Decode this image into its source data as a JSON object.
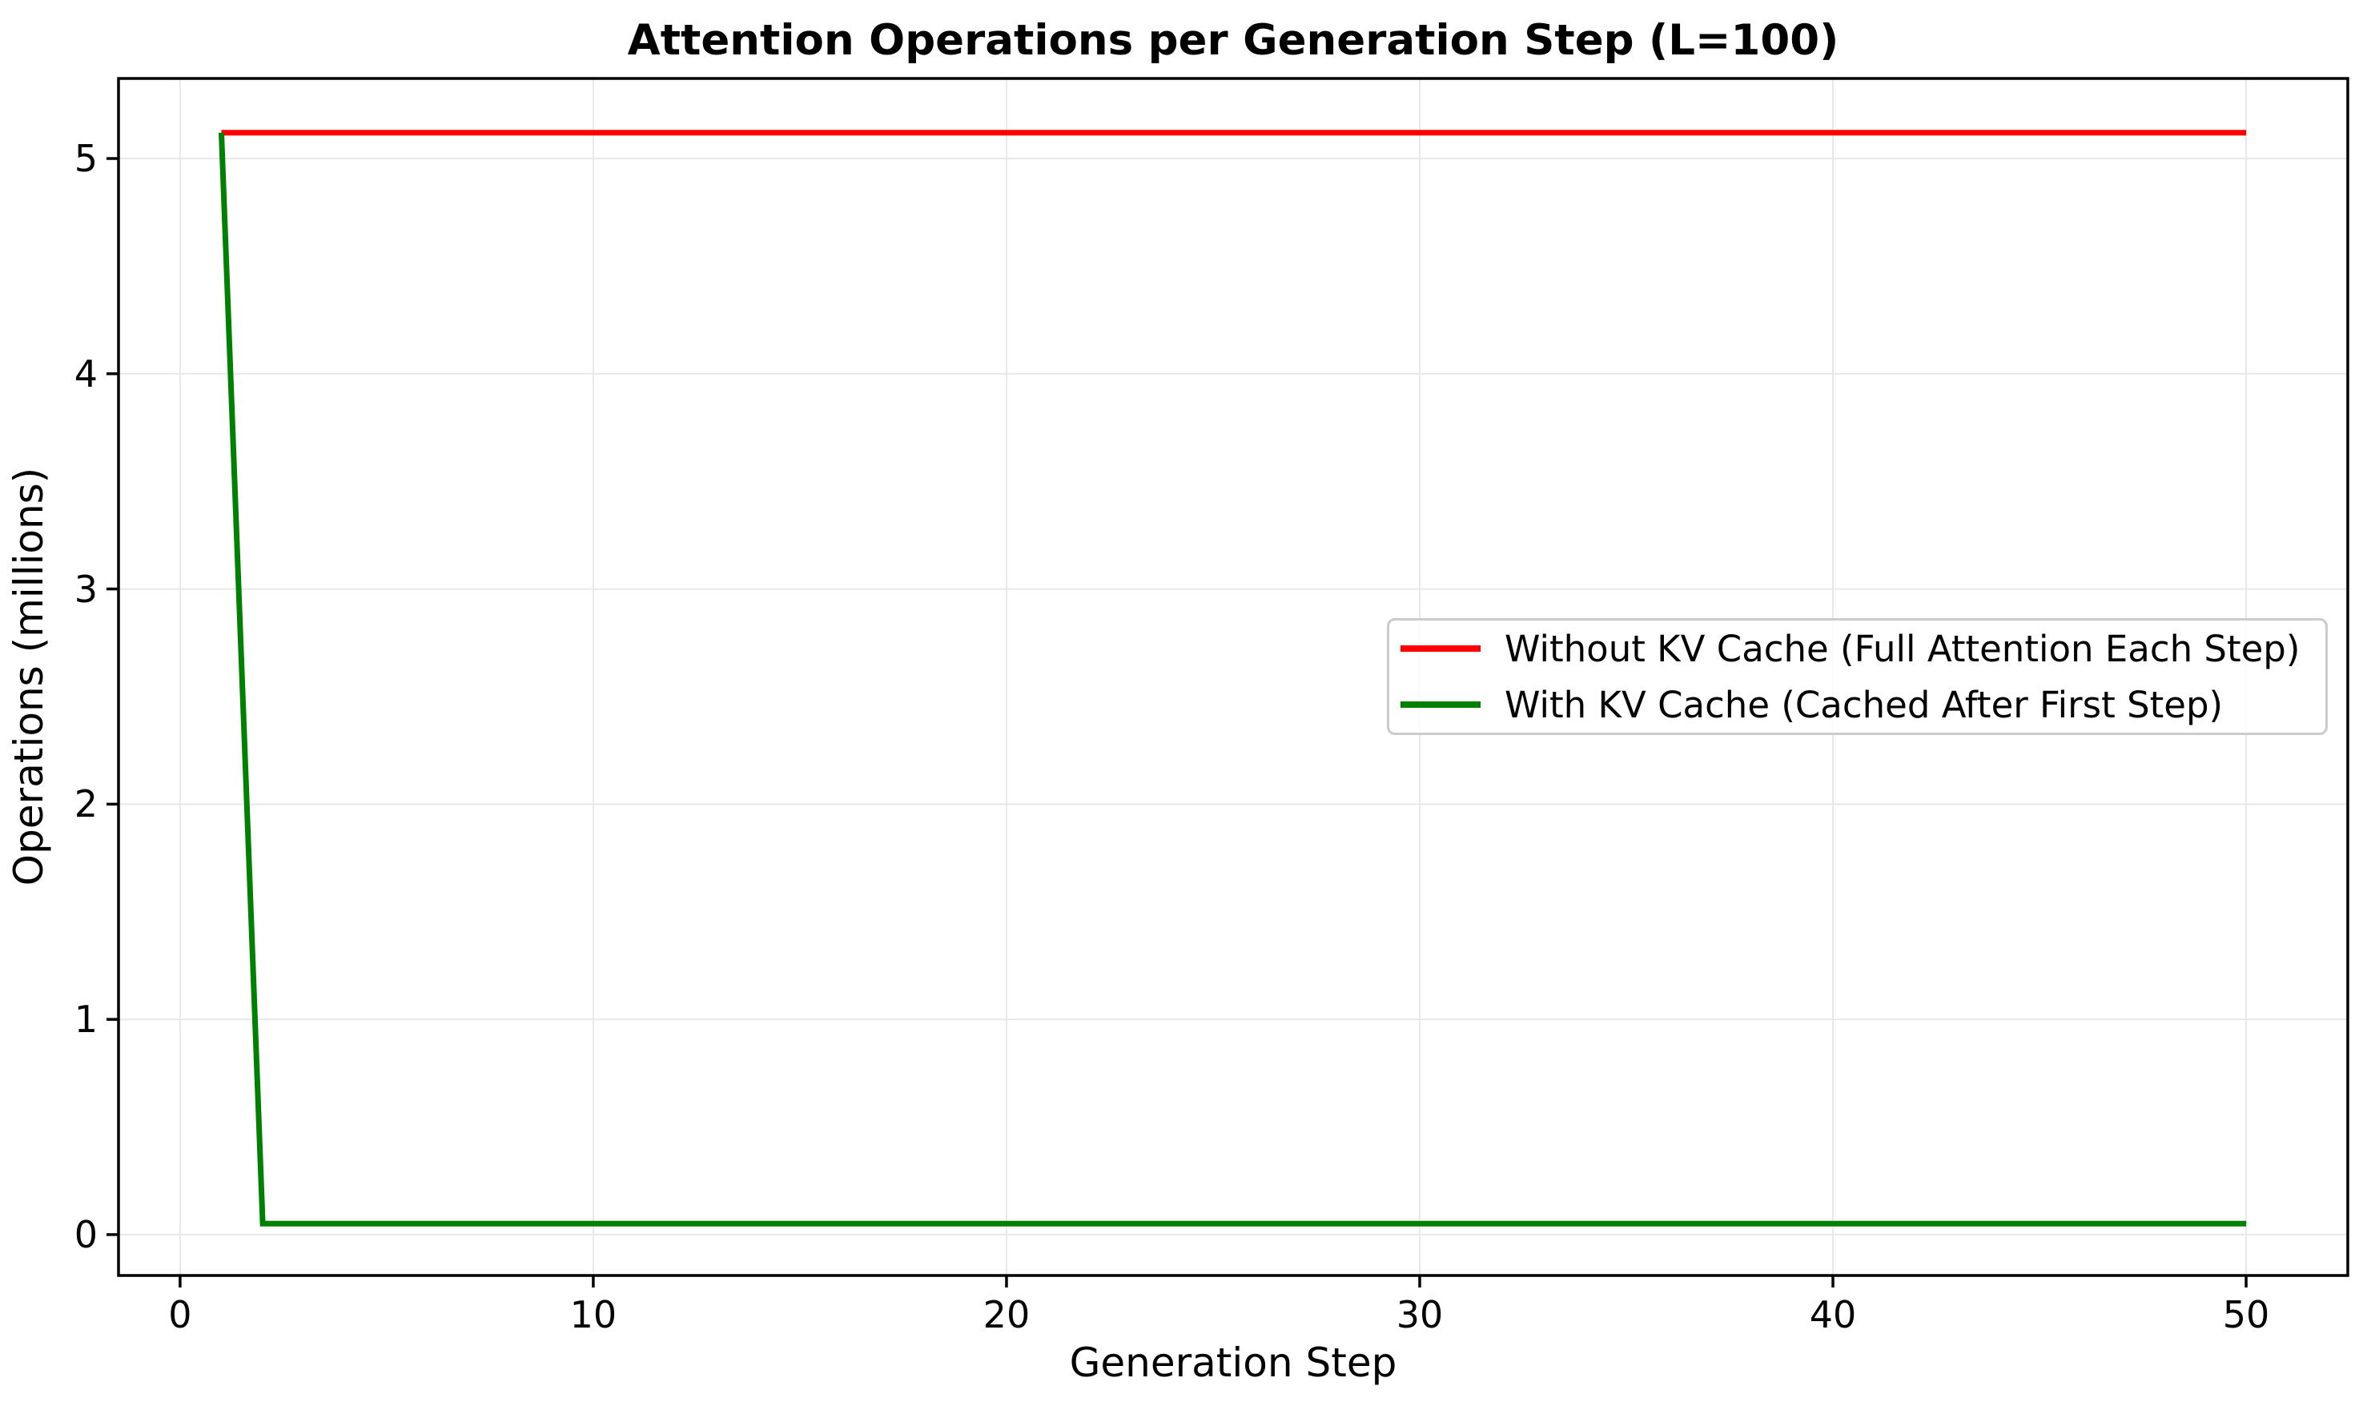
{
  "figure": {
    "background": "#ffffff",
    "text_color": "#000000",
    "grid_color": "#e8e8e8",
    "spine_color": "#000000",
    "legend_border_color": "#cbcbcb"
  },
  "chart_data": {
    "type": "line",
    "title": "Attention Operations per Generation Step (L=100)",
    "xlabel": "Generation Step",
    "ylabel": "Operations (millions)",
    "xlim": [
      -1.49,
      52.46
    ],
    "ylim": [
      -0.19,
      5.372
    ],
    "xticks": [
      0,
      10,
      20,
      30,
      40,
      50
    ],
    "yticks": [
      0,
      1,
      2,
      3,
      4,
      5
    ],
    "grid": true,
    "legend_position": "center-right",
    "x": [
      1,
      2,
      3,
      4,
      5,
      6,
      7,
      8,
      9,
      10,
      11,
      12,
      13,
      14,
      15,
      16,
      17,
      18,
      19,
      20,
      21,
      22,
      23,
      24,
      25,
      26,
      27,
      28,
      29,
      30,
      31,
      32,
      33,
      34,
      35,
      36,
      37,
      38,
      39,
      40,
      41,
      42,
      43,
      44,
      45,
      46,
      47,
      48,
      49,
      50
    ],
    "series": [
      {
        "id": "without-kv-cache",
        "name": "Without KV Cache (Full Attention Each Step)",
        "color": "#ff0000",
        "values": [
          5.12,
          5.12,
          5.12,
          5.12,
          5.12,
          5.12,
          5.12,
          5.12,
          5.12,
          5.12,
          5.12,
          5.12,
          5.12,
          5.12,
          5.12,
          5.12,
          5.12,
          5.12,
          5.12,
          5.12,
          5.12,
          5.12,
          5.12,
          5.12,
          5.12,
          5.12,
          5.12,
          5.12,
          5.12,
          5.12,
          5.12,
          5.12,
          5.12,
          5.12,
          5.12,
          5.12,
          5.12,
          5.12,
          5.12,
          5.12,
          5.12,
          5.12,
          5.12,
          5.12,
          5.12,
          5.12,
          5.12,
          5.12,
          5.12,
          5.12
        ]
      },
      {
        "id": "with-kv-cache",
        "name": "With KV Cache (Cached After First Step)",
        "color": "#008000",
        "values": [
          5.12,
          0.0512,
          0.0512,
          0.0512,
          0.0512,
          0.0512,
          0.0512,
          0.0512,
          0.0512,
          0.0512,
          0.0512,
          0.0512,
          0.0512,
          0.0512,
          0.0512,
          0.0512,
          0.0512,
          0.0512,
          0.0512,
          0.0512,
          0.0512,
          0.0512,
          0.0512,
          0.0512,
          0.0512,
          0.0512,
          0.0512,
          0.0512,
          0.0512,
          0.0512,
          0.0512,
          0.0512,
          0.0512,
          0.0512,
          0.0512,
          0.0512,
          0.0512,
          0.0512,
          0.0512,
          0.0512,
          0.0512,
          0.0512,
          0.0512,
          0.0512,
          0.0512,
          0.0512,
          0.0512,
          0.0512,
          0.0512,
          0.0512
        ]
      }
    ]
  }
}
